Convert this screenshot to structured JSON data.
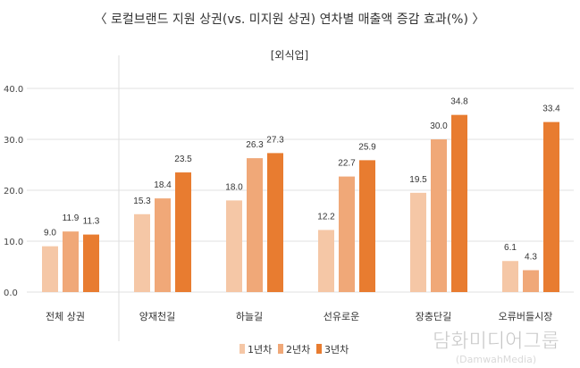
{
  "chart_data": {
    "type": "bar",
    "title": "〈 로컬브랜드 지원 상권(vs. 미지원 상권) 연차별 매출액 증감 효과(%) 〉",
    "subtitle": "[외식업]",
    "xlabel": "",
    "ylabel": "",
    "ylim": [
      0,
      40
    ],
    "yticks": [
      "0.0",
      "10.0",
      "20.0",
      "30.0",
      "40.0"
    ],
    "grid": true,
    "legend_position": "bottom",
    "categories": [
      "전체 상권",
      "양재천길",
      "하늘길",
      "선유로운",
      "장충단길",
      "오류버들시장"
    ],
    "series": [
      {
        "name": "1년차",
        "color": "#f5c7a6",
        "values": [
          9.0,
          15.3,
          18.0,
          12.2,
          19.5,
          6.1
        ]
      },
      {
        "name": "2년차",
        "color": "#f0a878",
        "values": [
          11.9,
          18.4,
          26.3,
          22.7,
          30.0,
          4.3
        ]
      },
      {
        "name": "3년차",
        "color": "#e87c30",
        "values": [
          11.3,
          23.5,
          27.3,
          25.9,
          34.8,
          33.4
        ]
      }
    ]
  },
  "watermark": {
    "line1": "(DamwahMedia)",
    "line2": "담화미디어그룹"
  }
}
